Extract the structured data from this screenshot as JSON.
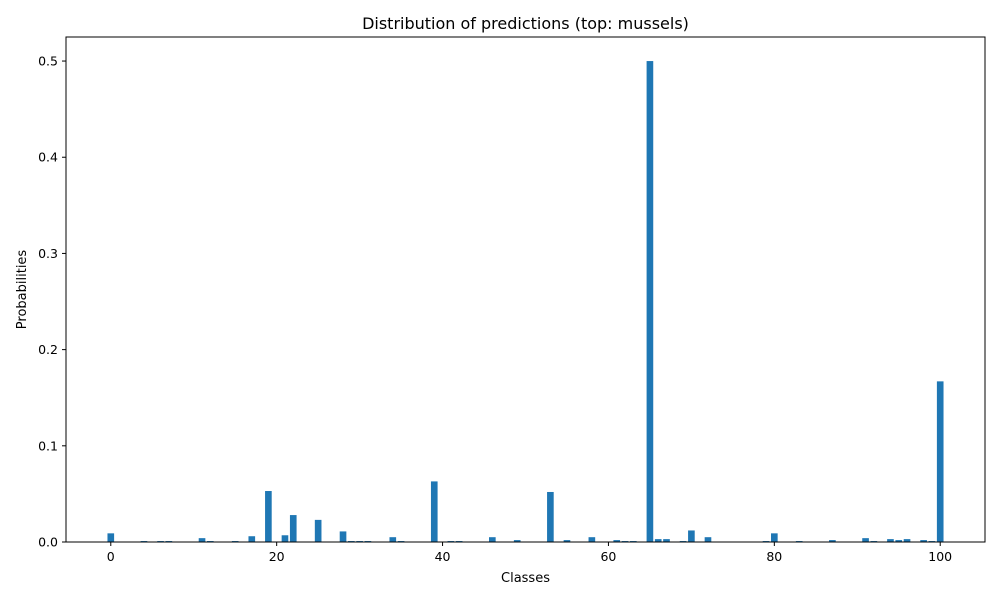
{
  "chart_data": {
    "type": "bar",
    "title": "Distribution of predictions (top: mussels)",
    "xlabel": "Classes",
    "ylabel": "Probabilities",
    "xlim": [
      -5.4,
      105.4
    ],
    "ylim": [
      0,
      0.525
    ],
    "xticks": [
      0,
      20,
      40,
      60,
      80,
      100
    ],
    "yticks": [
      0.0,
      0.1,
      0.2,
      0.3,
      0.4,
      0.5
    ],
    "bar_color": "#1f77b4",
    "grid": false,
    "x": [
      0,
      4,
      6,
      7,
      11,
      12,
      15,
      17,
      19,
      21,
      22,
      25,
      28,
      29,
      30,
      31,
      34,
      35,
      39,
      41,
      42,
      46,
      49,
      53,
      55,
      58,
      61,
      62,
      63,
      65,
      66,
      67,
      69,
      70,
      72,
      79,
      80,
      83,
      87,
      91,
      92,
      94,
      95,
      96,
      98,
      99,
      100
    ],
    "values": [
      0.009,
      0.001,
      0.001,
      0.001,
      0.004,
      0.001,
      0.001,
      0.006,
      0.053,
      0.007,
      0.028,
      0.023,
      0.011,
      0.001,
      0.001,
      0.001,
      0.005,
      0.001,
      0.063,
      0.001,
      0.001,
      0.005,
      0.002,
      0.052,
      0.002,
      0.005,
      0.002,
      0.001,
      0.001,
      0.5,
      0.003,
      0.003,
      0.001,
      0.012,
      0.005,
      0.001,
      0.009,
      0.001,
      0.002,
      0.004,
      0.001,
      0.003,
      0.002,
      0.003,
      0.002,
      0.001,
      0.167
    ]
  }
}
